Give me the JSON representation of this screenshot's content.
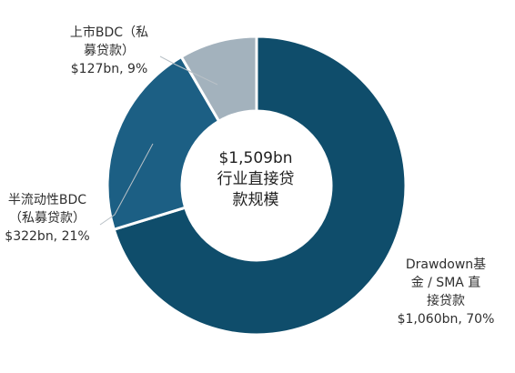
{
  "chart_data": {
    "type": "pie",
    "variant": "donut",
    "title": "",
    "center_text": [
      "$1,509bn",
      "行业直接贷",
      "款规模"
    ],
    "total": 1509,
    "unit": "$bn",
    "slices": [
      {
        "label_lines": [
          "Drawdown基",
          "金 / SMA 直",
          "接贷款"
        ],
        "value_text": "$1,060bn, 70%",
        "value": 1060,
        "percent": 70,
        "color": "#0f4d6b"
      },
      {
        "label_lines": [
          "半流动性BDC",
          "（私募贷款）"
        ],
        "value_text": "$322bn, 21%",
        "value": 322,
        "percent": 21,
        "color": "#1c5f84"
      },
      {
        "label_lines": [
          "上市BDC（私",
          "募贷款）"
        ],
        "value_text": "$127bn, 9%",
        "value": 127,
        "percent": 9,
        "color": "#a3b2bd"
      }
    ]
  }
}
